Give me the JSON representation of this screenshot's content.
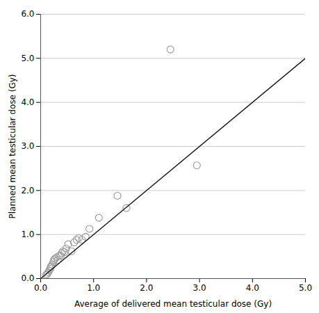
{
  "chart_data": {
    "type": "scatter",
    "xlabel": "Average of delivered mean testicular dose (Gy)",
    "ylabel": "Planned mean testicular dose (Gy)",
    "series": [
      {
        "type": "scatter",
        "color": "#999999",
        "marker": "open",
        "x": [
          0.1,
          0.12,
          0.14,
          0.16,
          0.18,
          0.19,
          0.2,
          0.22,
          0.24,
          0.25,
          0.27,
          0.3,
          0.32,
          0.35,
          0.38,
          0.4,
          0.42,
          0.45,
          0.48,
          0.52,
          0.58,
          0.63,
          0.68,
          0.72,
          0.78,
          0.85,
          0.92,
          1.1,
          1.45,
          1.62,
          2.45,
          2.95
        ],
        "values": [
          0.08,
          0.1,
          0.14,
          0.18,
          0.22,
          0.26,
          0.28,
          0.32,
          0.38,
          0.42,
          0.45,
          0.48,
          0.42,
          0.52,
          0.52,
          0.58,
          0.62,
          0.6,
          0.68,
          0.78,
          0.62,
          0.82,
          0.88,
          0.92,
          0.88,
          0.95,
          1.13,
          1.38,
          1.88,
          1.6,
          5.2,
          2.57
        ]
      },
      {
        "type": "line",
        "color": "#1a1a1a",
        "x": [
          0,
          5
        ],
        "values": [
          0,
          5
        ]
      }
    ],
    "xlim": [
      0,
      5
    ],
    "xticks": [
      0,
      1,
      2,
      3,
      4,
      5
    ],
    "ylim": [
      0,
      6
    ],
    "yticks": [
      0,
      1,
      2,
      3,
      4,
      5,
      6
    ],
    "grid": "y"
  }
}
